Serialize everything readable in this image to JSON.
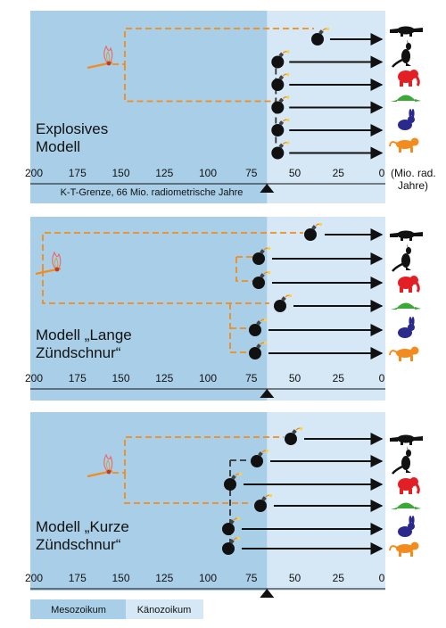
{
  "axis": {
    "ticks": [
      "200",
      "175",
      "150",
      "125",
      "100",
      "75",
      "50",
      "25",
      "0"
    ],
    "unit_line1": "(Mio. rad.",
    "unit_line2": "Jahre)",
    "kt_boundary_label": "K-T-Grenze, 66 Mio. radiometrische Jahre"
  },
  "panels": [
    {
      "title_line1": "Explosives",
      "title_line2": "Modell"
    },
    {
      "title_line1": "Modell „Lange",
      "title_line2": "Zündschnur“"
    },
    {
      "title_line1": "Modell „Kurze",
      "title_line2": "Zündschnur“"
    }
  ],
  "animals": [
    {
      "name": "platypus-icon",
      "color": "#111111"
    },
    {
      "name": "kangaroo-icon",
      "color": "#111111"
    },
    {
      "name": "elephant-icon",
      "color": "#e31f26"
    },
    {
      "name": "armadillo-icon",
      "color": "#3aa935"
    },
    {
      "name": "rabbit-icon",
      "color": "#2a2a8c"
    },
    {
      "name": "tiger-icon",
      "color": "#f28c1e"
    }
  ],
  "legend": {
    "mesozoic": {
      "label": "Mesozoikum",
      "color": "#a9cfe8"
    },
    "cenozoic": {
      "label": "Känozoikum",
      "color": "#d6e8f5"
    }
  },
  "colors": {
    "fuse": "#f28c1e",
    "fuse_dark": "#333333",
    "bomb": "#111111",
    "arrow": "#111111"
  }
}
